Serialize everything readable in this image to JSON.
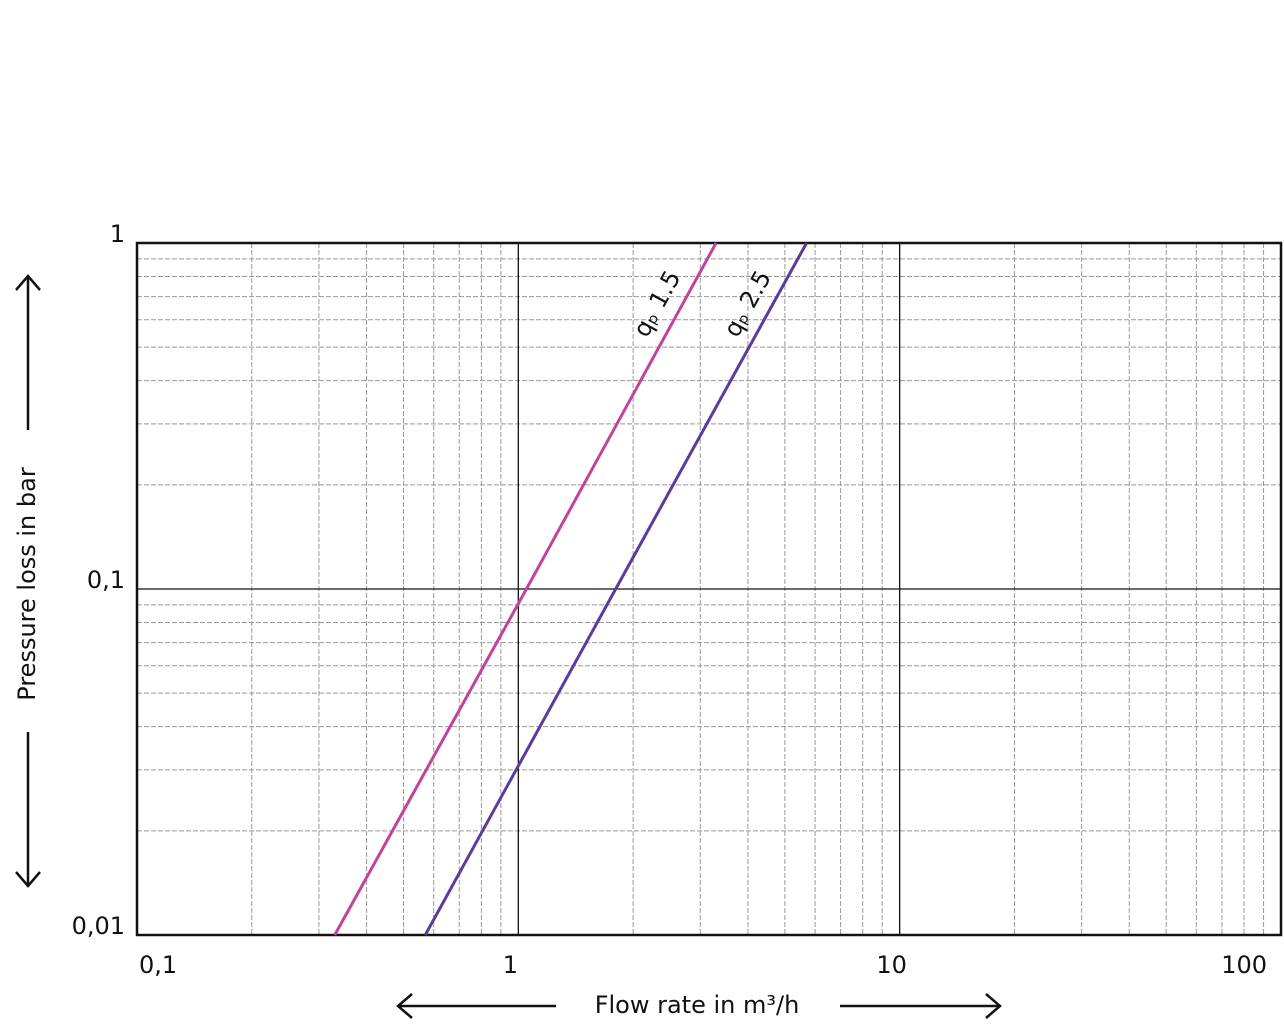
{
  "chart_data": {
    "type": "line",
    "x_label": "Flow rate in m³/h",
    "y_label": "Pressure loss in bar",
    "xlog": true,
    "ylog": true,
    "grid": true,
    "xlim": [
      0.1,
      100
    ],
    "ylim": [
      0.01,
      1
    ],
    "xticks": [
      {
        "value": 0.1,
        "label": "0,1"
      },
      1,
      10,
      100
    ],
    "yticks": [
      {
        "value": 0.01,
        "label": "0,01"
      },
      {
        "value": 0.1,
        "label": "0,1"
      },
      1
    ],
    "x_minor_ticks": [
      0.2,
      0.3,
      0.4,
      0.5,
      0.6,
      0.7,
      0.8,
      0.9,
      2,
      3,
      4,
      5,
      6,
      7,
      8,
      9,
      20,
      30,
      40,
      50,
      60,
      70,
      80,
      90
    ],
    "y_minor_ticks": [
      0.02,
      0.03,
      0.04,
      0.05,
      0.06,
      0.07,
      0.08,
      0.09,
      0.2,
      0.3,
      0.4,
      0.5,
      0.6,
      0.7,
      0.8,
      0.9
    ],
    "series": [
      {
        "name": "qₚ 1.5",
        "color": "#c0449c",
        "x": [
          0.33,
          1.05,
          3.3
        ],
        "values": [
          0.01,
          0.1,
          1
        ]
      },
      {
        "name": "qₚ 2.5",
        "color": "#5a3c9c",
        "x": [
          0.57,
          1.8,
          5.7
        ],
        "values": [
          0.01,
          0.1,
          1
        ]
      }
    ]
  }
}
